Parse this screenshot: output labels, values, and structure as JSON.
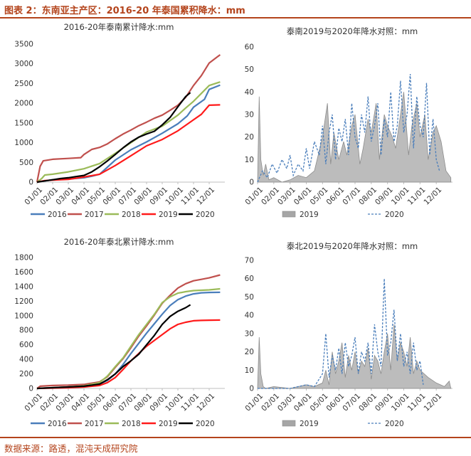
{
  "figure": {
    "title": "图表 2：东南亚主产区：2016-20 年泰国累积降水：mm",
    "source": "数据来源：路透，混沌天成研究院"
  },
  "chart_data": [
    {
      "type": "line",
      "title": "2016-20年泰南累计降水:mm",
      "x_ticks": [
        "01/01",
        "02/01",
        "03/01",
        "04/01",
        "05/01",
        "06/01",
        "07/01",
        "08/01",
        "09/01",
        "10/01",
        "11/01",
        "12/01"
      ],
      "ylim": [
        0,
        3500
      ],
      "y_ticks": [
        0,
        500,
        1000,
        1500,
        2000,
        2500,
        3000,
        3500
      ],
      "series": [
        {
          "name": "2016",
          "color": "#4a7ebb",
          "x": [
            0,
            0.5,
            1,
            2,
            3,
            3.5,
            4,
            5,
            6,
            7,
            8,
            9,
            9.6,
            10,
            10.7,
            11,
            11.7
          ],
          "y": [
            0,
            30,
            60,
            80,
            110,
            150,
            200,
            560,
            820,
            1020,
            1240,
            1480,
            1680,
            1900,
            2100,
            2350,
            2460
          ]
        },
        {
          "name": "2017",
          "color": "#c0504d",
          "x": [
            0,
            0.2,
            0.4,
            1,
            2,
            2.8,
            3,
            3.5,
            4,
            4.5,
            5,
            5.5,
            6,
            6.5,
            7,
            7.5,
            8,
            8.5,
            9,
            9.5,
            10,
            10.5,
            11,
            11.5,
            11.7
          ],
          "y": [
            0,
            400,
            540,
            580,
            600,
            620,
            700,
            830,
            880,
            970,
            1100,
            1220,
            1320,
            1430,
            1520,
            1620,
            1700,
            1820,
            1950,
            2150,
            2450,
            2700,
            3020,
            3170,
            3230
          ]
        },
        {
          "name": "2018",
          "color": "#9bbb59",
          "x": [
            0,
            0.3,
            0.5,
            1,
            2,
            3,
            4,
            5,
            6,
            7,
            8,
            9,
            9.5,
            10,
            10.5,
            11,
            11.7
          ],
          "y": [
            0,
            90,
            180,
            200,
            260,
            340,
            470,
            730,
            1000,
            1270,
            1420,
            1700,
            1880,
            2050,
            2250,
            2450,
            2540
          ]
        },
        {
          "name": "2019",
          "color": "#ff1a1a",
          "x": [
            0,
            0.5,
            1,
            2,
            3,
            4,
            5,
            6,
            7,
            8,
            9,
            10,
            10.5,
            11,
            11.7
          ],
          "y": [
            0,
            40,
            50,
            70,
            130,
            200,
            420,
            670,
            920,
            1080,
            1300,
            1580,
            1720,
            1950,
            1960
          ]
        },
        {
          "name": "2020",
          "color": "#000000",
          "x": [
            0,
            0.5,
            1,
            1.5,
            2,
            2.5,
            3,
            3.5,
            4,
            4.5,
            5,
            5.5,
            6,
            6.5,
            7,
            7.5,
            8,
            8.5,
            9,
            9.5,
            9.8
          ],
          "y": [
            0,
            30,
            60,
            90,
            110,
            140,
            170,
            260,
            390,
            540,
            700,
            870,
            1020,
            1140,
            1220,
            1290,
            1450,
            1640,
            1910,
            2170,
            2270
          ]
        }
      ]
    },
    {
      "type": "area",
      "title": "泰南2019与2020年降水对照：mm",
      "x_ticks": [
        "01/01",
        "02/01",
        "03/01",
        "04/01",
        "05/01",
        "06/01",
        "07/01",
        "08/01",
        "09/01",
        "10/01",
        "11/01",
        "12/01"
      ],
      "ylim": [
        0,
        60
      ],
      "y_ticks": [
        0,
        10,
        20,
        30,
        40,
        50,
        60
      ],
      "series": [
        {
          "name": "2019",
          "color": "#a6a6a6",
          "x": [
            0,
            0.1,
            0.2,
            0.35,
            0.5,
            0.7,
            1,
            1.5,
            2,
            2.5,
            3,
            3.5,
            4,
            4.3,
            4.5,
            4.7,
            5,
            5.3,
            5.5,
            5.8,
            6,
            6.3,
            6.5,
            6.8,
            7,
            7.3,
            7.5,
            7.8,
            8,
            8.3,
            8.5,
            8.8,
            9,
            9.3,
            9.5,
            9.8,
            10,
            10.3,
            10.5,
            10.8,
            11,
            11.3,
            11.6,
            11.9
          ],
          "y": [
            0,
            38,
            10,
            3,
            8,
            1,
            2,
            0,
            1,
            3,
            2,
            5,
            20,
            35,
            8,
            22,
            10,
            18,
            12,
            25,
            30,
            8,
            15,
            28,
            22,
            35,
            10,
            30,
            25,
            20,
            15,
            30,
            40,
            12,
            25,
            35,
            20,
            30,
            10,
            22,
            25,
            18,
            5,
            2
          ]
        },
        {
          "name": "2020",
          "color": "#4a7ebb",
          "x": [
            0,
            0.3,
            0.6,
            0.9,
            1.2,
            1.5,
            1.8,
            2,
            2.2,
            2.5,
            2.8,
            3,
            3.2,
            3.5,
            3.8,
            4,
            4.2,
            4.4,
            4.6,
            4.8,
            5,
            5.2,
            5.4,
            5.6,
            5.8,
            6,
            6.2,
            6.4,
            6.6,
            6.8,
            7,
            7.2,
            7.4,
            7.6,
            7.8,
            8,
            8.2,
            8.4,
            8.6,
            8.8,
            9,
            9.2,
            9.4,
            9.6,
            9.8,
            10,
            10.2,
            10.4,
            10.6,
            10.8,
            11,
            11.2
          ],
          "y": [
            0,
            5,
            2,
            8,
            4,
            10,
            6,
            12,
            3,
            8,
            5,
            15,
            6,
            18,
            12,
            25,
            8,
            22,
            30,
            10,
            24,
            18,
            28,
            12,
            35,
            20,
            15,
            30,
            22,
            38,
            18,
            25,
            35,
            12,
            28,
            20,
            40,
            18,
            25,
            45,
            22,
            30,
            48,
            15,
            38,
            25,
            20,
            44,
            12,
            28,
            10,
            5
          ]
        }
      ]
    },
    {
      "type": "line",
      "title": "2016-20年泰北累计降水:mm",
      "x_ticks": [
        "01/01",
        "02/01",
        "03/01",
        "04/01",
        "05/01",
        "06/01",
        "07/01",
        "08/01",
        "09/01",
        "10/01",
        "11/01",
        "12/01"
      ],
      "ylim": [
        0,
        1800
      ],
      "y_ticks": [
        0,
        200,
        400,
        600,
        800,
        1000,
        1200,
        1400,
        1600,
        1800
      ],
      "series": [
        {
          "name": "2016",
          "color": "#4a7ebb",
          "x": [
            0,
            1,
            2,
            3,
            4,
            4.5,
            5,
            5.5,
            6,
            6.5,
            7,
            7.5,
            8,
            8.5,
            9,
            9.5,
            10,
            10.5,
            11,
            11.7
          ],
          "y": [
            0,
            10,
            20,
            30,
            60,
            110,
            200,
            330,
            480,
            620,
            760,
            890,
            1020,
            1140,
            1220,
            1270,
            1300,
            1315,
            1320,
            1322
          ]
        },
        {
          "name": "2017",
          "color": "#c0504d",
          "x": [
            0,
            0.2,
            1,
            2,
            3,
            4,
            4.5,
            5,
            5.5,
            6,
            6.5,
            7,
            7.5,
            8,
            8.5,
            9,
            9.5,
            10,
            10.5,
            11,
            11.7
          ],
          "y": [
            0,
            30,
            40,
            45,
            55,
            90,
            160,
            290,
            410,
            560,
            720,
            860,
            1010,
            1170,
            1280,
            1380,
            1440,
            1480,
            1500,
            1520,
            1560
          ]
        },
        {
          "name": "2018",
          "color": "#9bbb59",
          "x": [
            0,
            1,
            2,
            3,
            4,
            4.5,
            5,
            5.5,
            6,
            6.5,
            7,
            7.5,
            8,
            8.5,
            9,
            9.5,
            10,
            10.5,
            11,
            11.7
          ],
          "y": [
            0,
            10,
            20,
            35,
            80,
            170,
            300,
            420,
            580,
            740,
            880,
            1020,
            1180,
            1260,
            1310,
            1330,
            1345,
            1350,
            1355,
            1370
          ]
        },
        {
          "name": "2019",
          "color": "#ff1a1a",
          "x": [
            0,
            1,
            2,
            3,
            4,
            4.5,
            5,
            5.5,
            6,
            6.5,
            7,
            7.5,
            8,
            8.5,
            9,
            9.5,
            10,
            10.5,
            11,
            11.7
          ],
          "y": [
            0,
            5,
            10,
            20,
            40,
            80,
            150,
            260,
            380,
            480,
            580,
            660,
            740,
            820,
            880,
            910,
            930,
            935,
            938,
            940
          ]
        },
        {
          "name": "2020",
          "color": "#000000",
          "x": [
            0,
            1,
            2,
            3,
            4,
            4.5,
            5,
            5.5,
            6,
            6.5,
            7,
            7.5,
            8,
            8.5,
            9,
            9.5,
            9.8
          ],
          "y": [
            0,
            10,
            20,
            30,
            60,
            120,
            200,
            300,
            380,
            470,
            600,
            730,
            880,
            990,
            1060,
            1110,
            1150
          ]
        }
      ]
    },
    {
      "type": "area",
      "title": "泰北2019与2020年降水对照：mm",
      "x_ticks": [
        "01/01",
        "02/01",
        "03/01",
        "04/01",
        "05/01",
        "06/01",
        "07/01",
        "08/01",
        "09/01",
        "10/01",
        "11/01",
        "12/01"
      ],
      "ylim": [
        0,
        70
      ],
      "y_ticks": [
        0,
        10,
        20,
        30,
        40,
        50,
        60,
        70
      ],
      "series": [
        {
          "name": "2019",
          "color": "#a6a6a6",
          "x": [
            0,
            0.1,
            0.2,
            0.35,
            0.5,
            1,
            2,
            3,
            3.5,
            4,
            4.2,
            4.4,
            4.6,
            4.8,
            5,
            5.2,
            5.4,
            5.6,
            5.8,
            6,
            6.2,
            6.4,
            6.6,
            6.8,
            7,
            7.2,
            7.4,
            7.6,
            7.8,
            8,
            8.2,
            8.4,
            8.6,
            8.8,
            9,
            9.2,
            9.4,
            9.6,
            9.8,
            10,
            10.5,
            11,
            11.5,
            11.8,
            11.9
          ],
          "y": [
            0,
            28,
            8,
            1,
            0,
            1,
            0,
            2,
            1,
            3,
            10,
            2,
            20,
            8,
            15,
            25,
            6,
            18,
            10,
            20,
            8,
            15,
            12,
            22,
            5,
            18,
            15,
            8,
            20,
            30,
            10,
            35,
            15,
            25,
            20,
            12,
            28,
            8,
            15,
            10,
            6,
            3,
            1,
            4,
            0
          ]
        },
        {
          "name": "2020",
          "color": "#4a7ebb",
          "x": [
            0,
            1,
            2,
            3,
            3.5,
            4,
            4.2,
            4.4,
            4.6,
            4.8,
            5,
            5.2,
            5.4,
            5.6,
            5.8,
            6,
            6.2,
            6.4,
            6.6,
            6.8,
            7,
            7.2,
            7.4,
            7.6,
            7.8,
            8,
            8.2,
            8.4,
            8.6,
            8.8,
            9,
            9.2,
            9.4,
            9.6,
            9.8,
            10,
            10.2
          ],
          "y": [
            0,
            0,
            0,
            2,
            1,
            8,
            30,
            6,
            18,
            10,
            22,
            8,
            25,
            12,
            18,
            28,
            8,
            20,
            15,
            25,
            8,
            35,
            20,
            12,
            60,
            18,
            25,
            43,
            15,
            30,
            12,
            20,
            8,
            25,
            10,
            15,
            2
          ]
        }
      ]
    }
  ]
}
